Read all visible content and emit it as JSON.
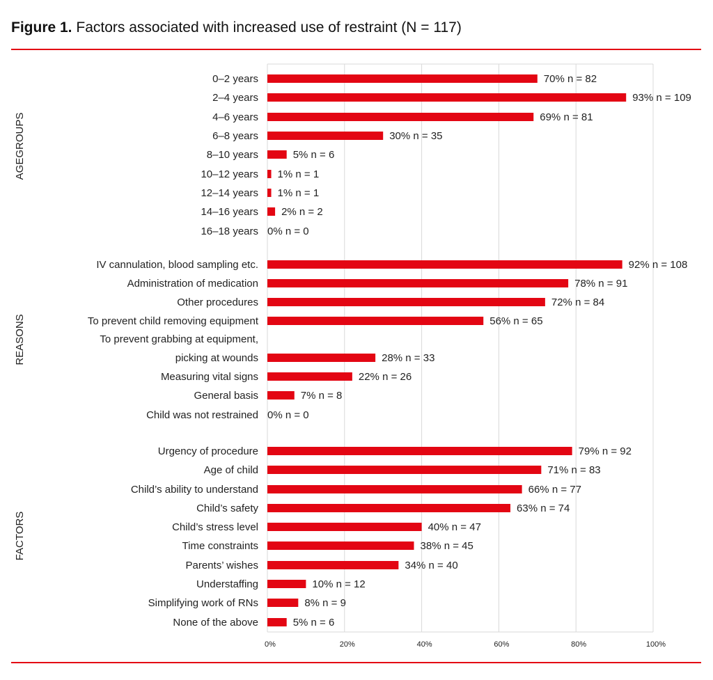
{
  "title": {
    "bold": "Figure 1.",
    "text": "Factors associated with increased use of restraint (N = 117)"
  },
  "colors": {
    "bar": "#e30613",
    "rule": "#e30613",
    "grid": "#d9d9d9"
  },
  "chart_data": {
    "type": "bar",
    "orientation": "horizontal",
    "xlim": [
      0,
      100
    ],
    "xticks": [
      "0%",
      "20%",
      "40%",
      "60%",
      "80%",
      "100%"
    ],
    "grid": true,
    "groups": [
      {
        "name": "AGEGROUPS",
        "items": [
          {
            "label": "0–2 years",
            "value": 70,
            "n": 82
          },
          {
            "label": "2–4 years",
            "value": 93,
            "n": 109
          },
          {
            "label": "4–6 years",
            "value": 69,
            "n": 81
          },
          {
            "label": "6–8 years",
            "value": 30,
            "n": 35
          },
          {
            "label": "8–10 years",
            "value": 5,
            "n": 6
          },
          {
            "label": "10–12 years",
            "value": 1,
            "n": 1
          },
          {
            "label": "12–14 years",
            "value": 1,
            "n": 1
          },
          {
            "label": "14–16 years",
            "value": 2,
            "n": 2
          },
          {
            "label": "16–18 years",
            "value": 0,
            "n": 0
          }
        ]
      },
      {
        "name": "REASONS",
        "items": [
          {
            "label": "IV cannulation, blood sampling etc.",
            "value": 92,
            "n": 108
          },
          {
            "label": "Administration of medication",
            "value": 78,
            "n": 91
          },
          {
            "label": "Other procedures",
            "value": 72,
            "n": 84
          },
          {
            "label": "To prevent child removing equipment",
            "value": 56,
            "n": 65
          },
          {
            "label": "To prevent grabbing at equipment,",
            "label2": "picking at wounds",
            "value": 28,
            "n": 33
          },
          {
            "label": "Measuring vital signs",
            "value": 22,
            "n": 26
          },
          {
            "label": "General basis",
            "value": 7,
            "n": 8
          },
          {
            "label": "Child was not restrained",
            "value": 0,
            "n": 0
          }
        ]
      },
      {
        "name": "FACTORS",
        "items": [
          {
            "label": "Urgency of procedure",
            "value": 79,
            "n": 92
          },
          {
            "label": "Age of child",
            "value": 71,
            "n": 83
          },
          {
            "label": "Child’s ability to understand",
            "value": 66,
            "n": 77
          },
          {
            "label": "Child’s safety",
            "value": 63,
            "n": 74
          },
          {
            "label": "Child’s stress level",
            "value": 40,
            "n": 47
          },
          {
            "label": "Time constraints",
            "value": 38,
            "n": 45
          },
          {
            "label": "Parents’ wishes",
            "value": 34,
            "n": 40
          },
          {
            "label": "Understaffing",
            "value": 10,
            "n": 12
          },
          {
            "label": "Simplifying work of RNs",
            "value": 8,
            "n": 9
          },
          {
            "label": "None of the above",
            "value": 5,
            "n": 6
          }
        ]
      }
    ]
  }
}
